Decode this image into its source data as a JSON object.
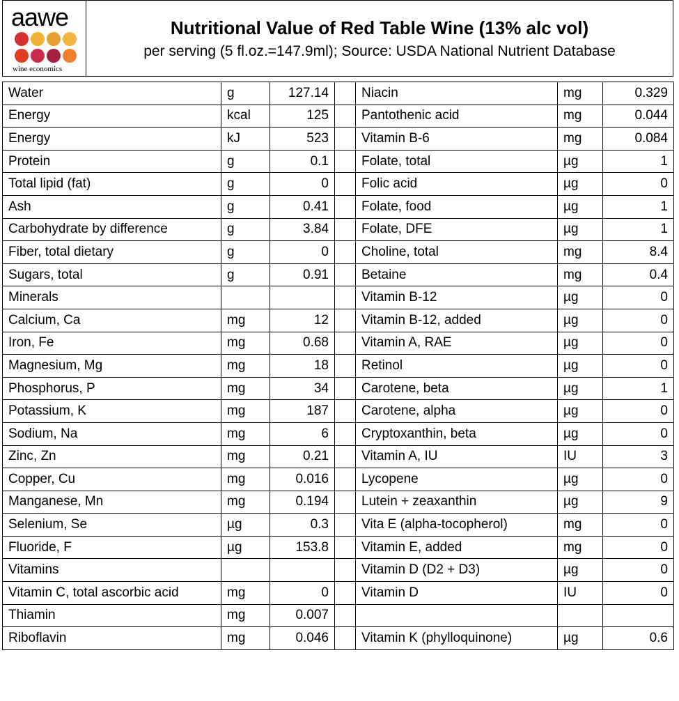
{
  "header": {
    "logo_text": "aawe",
    "logo_subtext": "wine economics",
    "title": "Nutritional Value of Red Table Wine (13% alc vol)",
    "subtitle": "per serving (5 fl.oz.=147.9ml); Source: USDA National Nutrient Database",
    "logo_colors": [
      "#d42f2f",
      "#f0b030",
      "#e8a030",
      "#c92a4a",
      "#e04020",
      "#b51e40",
      "#a52040",
      "#f08030"
    ]
  },
  "rows": [
    {
      "left": [
        "Water",
        "g",
        "127.14"
      ],
      "right": [
        "Niacin",
        "mg",
        "0.329"
      ]
    },
    {
      "left": [
        "Energy",
        "kcal",
        "125"
      ],
      "right": [
        "Pantothenic acid",
        "mg",
        "0.044"
      ]
    },
    {
      "left": [
        "Energy",
        "kJ",
        "523"
      ],
      "right": [
        "Vitamin B-6",
        "mg",
        "0.084"
      ]
    },
    {
      "left": [
        "Protein",
        "g",
        "0.1"
      ],
      "right": [
        "Folate, total",
        "µg",
        "1"
      ]
    },
    {
      "left": [
        "Total lipid (fat)",
        "g",
        "0"
      ],
      "right": [
        "Folic acid",
        "µg",
        "0"
      ]
    },
    {
      "left": [
        "Ash",
        "g",
        "0.41"
      ],
      "right": [
        "Folate, food",
        "µg",
        "1"
      ]
    },
    {
      "left": [
        "Carbohydrate by difference",
        "g",
        "3.84"
      ],
      "right": [
        "Folate, DFE",
        "µg",
        "1"
      ]
    },
    {
      "left": [
        "Fiber, total dietary",
        "g",
        "0"
      ],
      "right": [
        "Choline, total",
        "mg",
        "8.4"
      ]
    },
    {
      "left": [
        "Sugars, total",
        "g",
        "0.91"
      ],
      "right": [
        "Betaine",
        "mg",
        "0.4"
      ]
    },
    {
      "left": [
        "Minerals",
        "",
        ""
      ],
      "right": [
        "Vitamin B-12",
        "µg",
        "0"
      ]
    },
    {
      "left": [
        "Calcium, Ca",
        "mg",
        "12"
      ],
      "right": [
        "Vitamin B-12, added",
        "µg",
        "0"
      ]
    },
    {
      "left": [
        "Iron, Fe",
        "mg",
        "0.68"
      ],
      "right": [
        "Vitamin A, RAE",
        "µg",
        "0"
      ]
    },
    {
      "left": [
        "Magnesium, Mg",
        "mg",
        "18"
      ],
      "right": [
        "Retinol",
        "µg",
        "0"
      ]
    },
    {
      "left": [
        "Phosphorus, P",
        "mg",
        "34"
      ],
      "right": [
        "Carotene, beta",
        "µg",
        "1"
      ]
    },
    {
      "left": [
        "Potassium, K",
        "mg",
        "187"
      ],
      "right": [
        "Carotene, alpha",
        "µg",
        "0"
      ]
    },
    {
      "left": [
        "Sodium, Na",
        "mg",
        "6"
      ],
      "right": [
        "Cryptoxanthin, beta",
        "µg",
        "0"
      ]
    },
    {
      "left": [
        "Zinc, Zn",
        "mg",
        "0.21"
      ],
      "right": [
        "Vitamin A, IU",
        "IU",
        "3"
      ]
    },
    {
      "left": [
        "Copper, Cu",
        "mg",
        "0.016"
      ],
      "right": [
        "Lycopene",
        "µg",
        "0"
      ]
    },
    {
      "left": [
        "Manganese, Mn",
        "mg",
        "0.194"
      ],
      "right": [
        "Lutein + zeaxanthin",
        "µg",
        "9"
      ]
    },
    {
      "left": [
        "Selenium, Se",
        "µg",
        "0.3"
      ],
      "right": [
        "Vita E (alpha-tocopherol)",
        "mg",
        "0"
      ]
    },
    {
      "left": [
        "Fluoride, F",
        "µg",
        "153.8"
      ],
      "right": [
        "Vitamin E, added",
        "mg",
        "0"
      ]
    },
    {
      "left": [
        "Vitamins",
        "",
        ""
      ],
      "right": [
        "Vitamin D (D2 + D3)",
        "µg",
        "0"
      ]
    },
    {
      "left": [
        "Vitamin C, total ascorbic acid",
        "mg",
        "0"
      ],
      "right": [
        "Vitamin D",
        "IU",
        "0"
      ]
    },
    {
      "left": [
        "Thiamin",
        "mg",
        "0.007"
      ],
      "right": [
        "",
        "",
        ""
      ]
    },
    {
      "left": [
        "Riboflavin",
        "mg",
        "0.046"
      ],
      "right": [
        "Vitamin K (phylloquinone)",
        "µg",
        "0.6"
      ]
    }
  ]
}
